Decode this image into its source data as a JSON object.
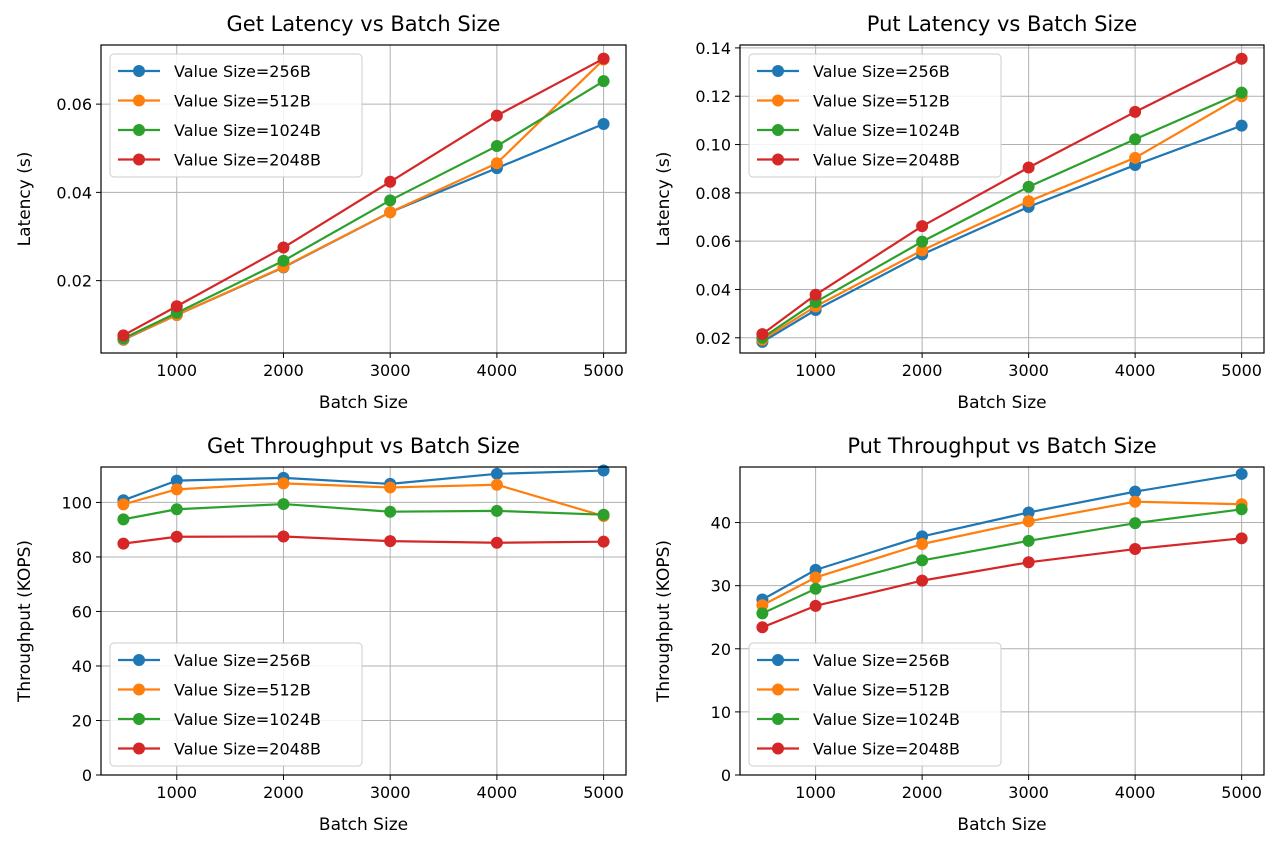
{
  "chart_data": [
    {
      "type": "line",
      "title": "Get Latency vs Batch Size",
      "xlabel": "Batch Size",
      "ylabel": "Latency (s)",
      "x": [
        500,
        1000,
        2000,
        3000,
        4000,
        5000
      ],
      "xlim": [
        290,
        5210
      ],
      "ylim": [
        0.0036,
        0.0734
      ],
      "xticks": [
        1000,
        2000,
        3000,
        4000,
        5000
      ],
      "xtick_labels": [
        "1000",
        "2000",
        "3000",
        "4000",
        "5000"
      ],
      "yticks": [
        0.02,
        0.04,
        0.06
      ],
      "ytick_labels": [
        "0.02",
        "0.04",
        "0.06"
      ],
      "grid": true,
      "legend_position": "upper-left",
      "series": [
        {
          "name": "Value Size=256B",
          "color": "#1f77b4",
          "values": [
            0.0066,
            0.0122,
            0.023,
            0.0355,
            0.0455,
            0.0555
          ]
        },
        {
          "name": "Value Size=512B",
          "color": "#ff7f0e",
          "values": [
            0.0067,
            0.0122,
            0.0231,
            0.0355,
            0.0466,
            0.0701
          ]
        },
        {
          "name": "Value Size=1024B",
          "color": "#2ca02c",
          "values": [
            0.0069,
            0.0127,
            0.0245,
            0.0382,
            0.0505,
            0.0652
          ]
        },
        {
          "name": "Value Size=2048B",
          "color": "#d62728",
          "values": [
            0.0076,
            0.0142,
            0.0275,
            0.0424,
            0.0574,
            0.0703
          ]
        }
      ]
    },
    {
      "type": "line",
      "title": "Put Latency vs Batch Size",
      "xlabel": "Batch Size",
      "ylabel": "Latency (s)",
      "x": [
        500,
        1000,
        2000,
        3000,
        4000,
        5000
      ],
      "xlim": [
        290,
        5210
      ],
      "ylim": [
        0.0137,
        0.1412
      ],
      "xticks": [
        1000,
        2000,
        3000,
        4000,
        5000
      ],
      "xtick_labels": [
        "1000",
        "2000",
        "3000",
        "4000",
        "5000"
      ],
      "yticks": [
        0.02,
        0.04,
        0.06,
        0.08,
        0.1,
        0.12,
        0.14
      ],
      "ytick_labels": [
        "0.02",
        "0.04",
        "0.06",
        "0.08",
        "0.10",
        "0.12",
        "0.14"
      ],
      "grid": true,
      "legend_position": "upper-left",
      "series": [
        {
          "name": "Value Size=256B",
          "color": "#1f77b4",
          "values": [
            0.0183,
            0.0315,
            0.0545,
            0.0742,
            0.0915,
            0.1078
          ]
        },
        {
          "name": "Value Size=512B",
          "color": "#ff7f0e",
          "values": [
            0.0192,
            0.033,
            0.0562,
            0.0765,
            0.0945,
            0.12
          ]
        },
        {
          "name": "Value Size=1024B",
          "color": "#2ca02c",
          "values": [
            0.02,
            0.0348,
            0.0598,
            0.0825,
            0.1022,
            0.1215
          ]
        },
        {
          "name": "Value Size=2048B",
          "color": "#d62728",
          "values": [
            0.0215,
            0.0378,
            0.0662,
            0.0905,
            0.1135,
            0.1355
          ]
        }
      ]
    },
    {
      "type": "line",
      "title": "Get Throughput vs Batch Size",
      "xlabel": "Batch Size",
      "ylabel": "Throughput (KOPS)",
      "x": [
        500,
        1000,
        2000,
        3000,
        4000,
        5000
      ],
      "xlim": [
        290,
        5210
      ],
      "ylim": [
        0,
        113
      ],
      "xticks": [
        1000,
        2000,
        3000,
        4000,
        5000
      ],
      "xtick_labels": [
        "1000",
        "2000",
        "3000",
        "4000",
        "5000"
      ],
      "yticks": [
        0,
        20,
        40,
        60,
        80,
        100
      ],
      "ytick_labels": [
        "0",
        "20",
        "40",
        "60",
        "80",
        "100"
      ],
      "grid": true,
      "legend_position": "lower-left",
      "series": [
        {
          "name": "Value Size=256B",
          "color": "#1f77b4",
          "values": [
            100.8,
            108.0,
            109.0,
            106.8,
            110.5,
            111.7
          ]
        },
        {
          "name": "Value Size=512B",
          "color": "#ff7f0e",
          "values": [
            99.3,
            104.8,
            107.0,
            105.5,
            106.5,
            95.0
          ]
        },
        {
          "name": "Value Size=1024B",
          "color": "#2ca02c",
          "values": [
            93.8,
            97.5,
            99.4,
            96.6,
            96.9,
            95.5
          ]
        },
        {
          "name": "Value Size=2048B",
          "color": "#d62728",
          "values": [
            84.9,
            87.4,
            87.5,
            85.8,
            85.2,
            85.6
          ]
        }
      ]
    },
    {
      "type": "line",
      "title": "Put Throughput vs Batch Size",
      "xlabel": "Batch Size",
      "ylabel": "Throughput (KOPS)",
      "x": [
        500,
        1000,
        2000,
        3000,
        4000,
        5000
      ],
      "xlim": [
        290,
        5210
      ],
      "ylim": [
        0,
        48.8
      ],
      "xticks": [
        1000,
        2000,
        3000,
        4000,
        5000
      ],
      "xtick_labels": [
        "1000",
        "2000",
        "3000",
        "4000",
        "5000"
      ],
      "yticks": [
        0,
        10,
        20,
        30,
        40
      ],
      "ytick_labels": [
        "0",
        "10",
        "20",
        "30",
        "40"
      ],
      "grid": true,
      "legend_position": "lower-left",
      "series": [
        {
          "name": "Value Size=256B",
          "color": "#1f77b4",
          "values": [
            27.8,
            32.5,
            37.8,
            41.6,
            44.9,
            47.7
          ]
        },
        {
          "name": "Value Size=512B",
          "color": "#ff7f0e",
          "values": [
            26.9,
            31.3,
            36.6,
            40.2,
            43.3,
            42.9
          ]
        },
        {
          "name": "Value Size=1024B",
          "color": "#2ca02c",
          "values": [
            25.6,
            29.5,
            34.0,
            37.1,
            39.9,
            42.1
          ]
        },
        {
          "name": "Value Size=2048B",
          "color": "#d62728",
          "values": [
            23.4,
            26.8,
            30.8,
            33.7,
            35.8,
            37.5
          ]
        }
      ]
    }
  ]
}
